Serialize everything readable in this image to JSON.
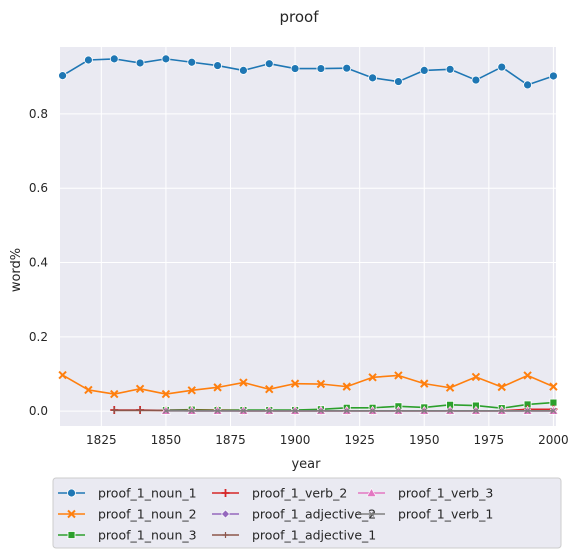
{
  "chart_data": {
    "type": "line",
    "title": "proof",
    "xlabel": "year",
    "ylabel": "word%",
    "xlim": [
      1809,
      2001
    ],
    "ylim": [
      -0.04,
      0.98
    ],
    "xticks": [
      1825,
      1850,
      1875,
      1900,
      1925,
      1950,
      1975,
      2000
    ],
    "yticks": [
      0.0,
      0.2,
      0.4,
      0.6,
      0.8
    ],
    "ytick_labels": [
      "0.0",
      "0.2",
      "0.4",
      "0.6",
      "0.8"
    ],
    "grid": true,
    "legend_position": "bottom",
    "series": [
      {
        "name": "proof_1_noun_1",
        "color": "#1f77b4",
        "marker": "circle",
        "x": [
          1810,
          1820,
          1830,
          1840,
          1850,
          1860,
          1870,
          1880,
          1890,
          1900,
          1910,
          1920,
          1930,
          1940,
          1950,
          1960,
          1970,
          1980,
          1990,
          2000
        ],
        "values": [
          0.903,
          0.945,
          0.948,
          0.937,
          0.948,
          0.939,
          0.93,
          0.917,
          0.935,
          0.922,
          0.922,
          0.923,
          0.897,
          0.887,
          0.917,
          0.92,
          0.891,
          0.926,
          0.878,
          0.902
        ]
      },
      {
        "name": "proof_1_noun_2",
        "color": "#ff7f0e",
        "marker": "x",
        "x": [
          1810,
          1820,
          1830,
          1840,
          1850,
          1860,
          1870,
          1880,
          1890,
          1900,
          1910,
          1920,
          1930,
          1940,
          1950,
          1960,
          1970,
          1980,
          1990,
          2000
        ],
        "values": [
          0.097,
          0.057,
          0.046,
          0.06,
          0.046,
          0.056,
          0.064,
          0.077,
          0.059,
          0.074,
          0.073,
          0.066,
          0.091,
          0.096,
          0.074,
          0.063,
          0.092,
          0.065,
          0.096,
          0.066
        ]
      },
      {
        "name": "proof_1_noun_3",
        "color": "#2ca02c",
        "marker": "square",
        "x": [
          1850,
          1860,
          1870,
          1880,
          1890,
          1900,
          1910,
          1920,
          1930,
          1940,
          1950,
          1960,
          1970,
          1980,
          1990,
          2000
        ],
        "values": [
          0.003,
          0.004,
          0.003,
          0.003,
          0.003,
          0.003,
          0.005,
          0.009,
          0.009,
          0.013,
          0.01,
          0.017,
          0.015,
          0.008,
          0.018,
          0.023
        ]
      },
      {
        "name": "proof_1_verb_2",
        "color": "#d62728",
        "marker": "plus",
        "x": [
          1830,
          1840,
          1850,
          1860,
          1870,
          1880,
          1890,
          1900,
          1910,
          1920,
          1930,
          1940,
          1950,
          1960,
          1970,
          1980,
          1990,
          2000
        ],
        "values": [
          0.003,
          0.003,
          0.002,
          0.002,
          0.002,
          0.001,
          0.001,
          0.001,
          0.001,
          0.001,
          0.001,
          0.001,
          0.001,
          0.001,
          0.001,
          0.001,
          0.005,
          0.005
        ]
      },
      {
        "name": "proof_1_adjective_2",
        "color": "#9467bd",
        "marker": "diamond",
        "x": [
          1850,
          1860,
          1870,
          1880,
          1890,
          1900,
          1910,
          1920,
          1930,
          1940,
          1950,
          1960,
          1970,
          1980,
          1990,
          2000
        ],
        "values": [
          0.002,
          0.001,
          0.001,
          0.001,
          0.001,
          0.001,
          0.001,
          0.001,
          0.001,
          0.001,
          0.001,
          0.001,
          0.001,
          0.001,
          0.001,
          0.001
        ]
      },
      {
        "name": "proof_1_adjective_1",
        "color": "#8c564b",
        "marker": "thin-plus",
        "x": [
          1830,
          1840,
          1850,
          1860,
          1870,
          1880,
          1890,
          1900,
          1910,
          1920,
          1930,
          1940,
          1950,
          1960,
          1970,
          1980,
          1990,
          2000
        ],
        "values": [
          0.002,
          0.002,
          0.002,
          0.001,
          0.001,
          0.001,
          0.001,
          0.001,
          0.001,
          0.001,
          0.001,
          0.001,
          0.001,
          0.001,
          0.001,
          0.001,
          0.001,
          0.001
        ]
      },
      {
        "name": "proof_1_verb_3",
        "color": "#e377c2",
        "marker": "triangle",
        "x": [
          1850,
          1860,
          1870,
          1880,
          1890,
          1900,
          1910,
          1920,
          1930,
          1940,
          1950,
          1960,
          1970,
          1980,
          1990,
          2000
        ],
        "values": [
          0.001,
          0.001,
          0.001,
          0.001,
          0.001,
          0.001,
          0.001,
          0.001,
          0.001,
          0.001,
          0.001,
          0.001,
          0.001,
          0.001,
          0.001,
          0.001
        ]
      },
      {
        "name": "proof_1_verb_1",
        "color": "#7f7f7f",
        "marker": "small-x",
        "x": [
          1850,
          1860,
          1870,
          1880,
          1890,
          1900,
          1910,
          1920,
          1930,
          1940,
          1950,
          1960,
          1970,
          1980,
          1990,
          2000
        ],
        "values": [
          0.001,
          0.001,
          0.001,
          0.001,
          0.001,
          0.001,
          0.001,
          0.001,
          0.001,
          0.001,
          0.001,
          0.001,
          0.001,
          0.001,
          0.001,
          0.001
        ]
      }
    ]
  }
}
